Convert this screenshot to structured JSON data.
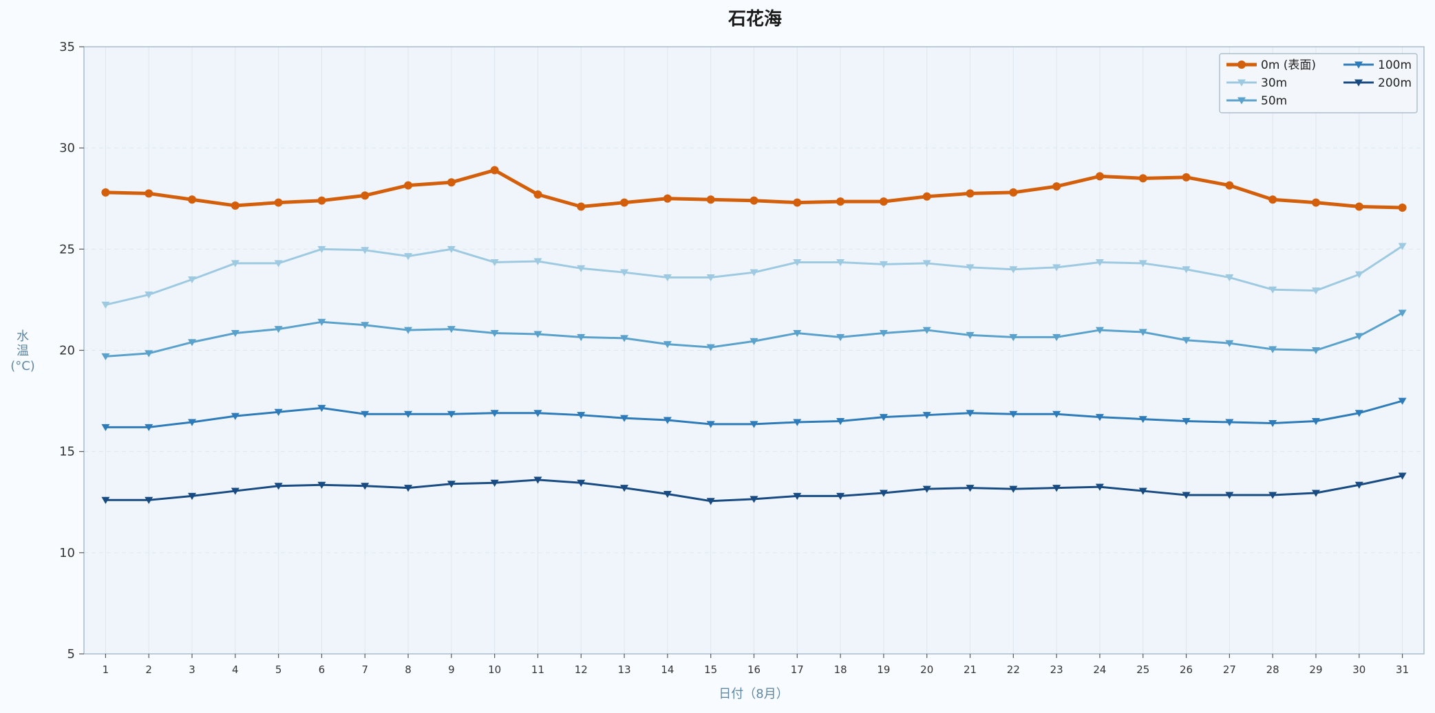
{
  "chart_data": {
    "type": "line",
    "title": "石花海",
    "xlabel": "日付（8月）",
    "ylabel": "水温 (°C)",
    "ylabel_lines": [
      "水",
      "温",
      "(°C)"
    ],
    "xlim": [
      0.5,
      31.5
    ],
    "ylim": [
      5,
      35
    ],
    "yticks": [
      5,
      10,
      15,
      20,
      25,
      30,
      35
    ],
    "x": [
      1,
      2,
      3,
      4,
      5,
      6,
      7,
      8,
      9,
      10,
      11,
      12,
      13,
      14,
      15,
      16,
      17,
      18,
      19,
      20,
      21,
      22,
      23,
      24,
      25,
      26,
      27,
      28,
      29,
      30,
      31
    ],
    "grid": true,
    "legend_position": "top-right",
    "series": [
      {
        "name": "0m (表面)",
        "color": "#d35f0b",
        "marker": "circle",
        "values": [
          27.8,
          27.75,
          27.45,
          27.15,
          27.3,
          27.4,
          27.65,
          28.15,
          28.3,
          28.9,
          27.7,
          27.1,
          27.3,
          27.5,
          27.45,
          27.4,
          27.3,
          27.35,
          27.35,
          27.6,
          27.75,
          27.8,
          28.1,
          28.6,
          28.5,
          28.55,
          28.15,
          27.45,
          27.3,
          27.1,
          27.05
        ]
      },
      {
        "name": "30m",
        "color": "#9ecae1",
        "marker": "triangle-down",
        "values": [
          22.25,
          22.75,
          23.5,
          24.3,
          24.3,
          25.0,
          24.95,
          24.65,
          25.0,
          24.35,
          24.4,
          24.05,
          23.85,
          23.6,
          23.6,
          23.85,
          24.35,
          24.35,
          24.25,
          24.3,
          24.1,
          24.0,
          24.1,
          24.35,
          24.3,
          24.0,
          23.6,
          23.0,
          22.95,
          23.75,
          25.15
        ]
      },
      {
        "name": "50m",
        "color": "#5aa2cc",
        "marker": "triangle-down",
        "values": [
          19.7,
          19.85,
          20.4,
          20.85,
          21.05,
          21.4,
          21.25,
          21.0,
          21.05,
          20.85,
          20.8,
          20.65,
          20.6,
          20.3,
          20.15,
          20.45,
          20.85,
          20.65,
          20.85,
          21.0,
          20.75,
          20.65,
          20.65,
          21.0,
          20.9,
          20.5,
          20.35,
          20.05,
          20.0,
          20.7,
          21.85
        ]
      },
      {
        "name": "100m",
        "color": "#2d7bb8",
        "marker": "triangle-down",
        "values": [
          16.2,
          16.2,
          16.45,
          16.75,
          16.95,
          17.15,
          16.85,
          16.85,
          16.85,
          16.9,
          16.9,
          16.8,
          16.65,
          16.55,
          16.35,
          16.35,
          16.45,
          16.5,
          16.7,
          16.8,
          16.9,
          16.85,
          16.85,
          16.7,
          16.6,
          16.5,
          16.45,
          16.4,
          16.5,
          16.9,
          17.5
        ]
      },
      {
        "name": "200m",
        "color": "#184b82",
        "marker": "triangle-down",
        "values": [
          12.6,
          12.6,
          12.8,
          13.05,
          13.3,
          13.35,
          13.3,
          13.2,
          13.4,
          13.45,
          13.6,
          13.45,
          13.2,
          12.9,
          12.55,
          12.65,
          12.8,
          12.8,
          12.95,
          13.15,
          13.2,
          13.15,
          13.2,
          13.25,
          13.05,
          12.85,
          12.85,
          12.85,
          12.95,
          13.35,
          13.8
        ]
      }
    ]
  }
}
